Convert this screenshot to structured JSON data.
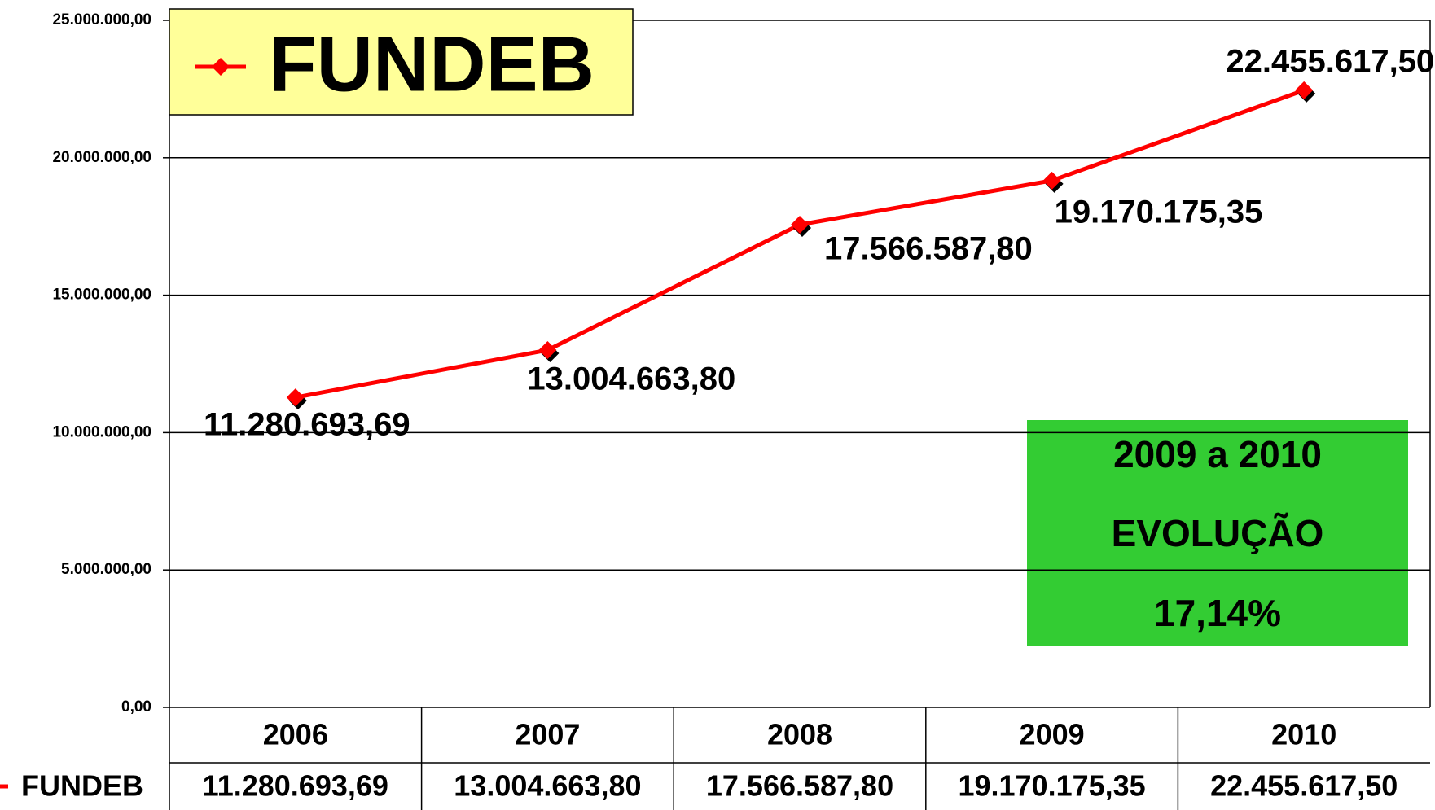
{
  "chart_data": {
    "type": "line",
    "categories": [
      "2006",
      "2007",
      "2008",
      "2009",
      "2010"
    ],
    "series": [
      {
        "name": "FUNDEB",
        "color": "#ff0000",
        "values": [
          11280693.69,
          13004663.8,
          17566587.8,
          19170175.35,
          22455617.5
        ],
        "value_labels": [
          "11.280.693,69",
          "13.004.663,80",
          "17.566.587,80",
          "19.170.175,35",
          "22.455.617,50"
        ]
      }
    ],
    "ylim": [
      0,
      25000000
    ],
    "yticks": [
      {
        "value": 0,
        "label": "0,00"
      },
      {
        "value": 5000000,
        "label": "5.000.000,00"
      },
      {
        "value": 10000000,
        "label": "10.000.000,00"
      },
      {
        "value": 15000000,
        "label": "15.000.000,00"
      },
      {
        "value": 20000000,
        "label": "20.000.000,00"
      },
      {
        "value": 25000000,
        "label": "25.000.000,00"
      }
    ],
    "grid": true,
    "legend": "top-left",
    "annotations": [
      "2009 a 2010",
      "EVOLUÇÃO",
      "17,14%"
    ]
  }
}
